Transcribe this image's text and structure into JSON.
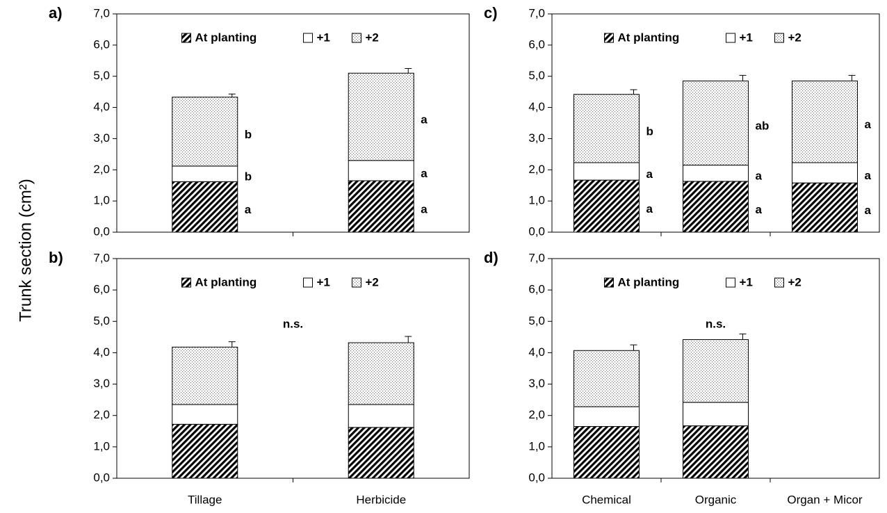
{
  "ylabel": "Trunk section (cm²)",
  "chart_data": [
    {
      "type": "stacked-bar",
      "title": "a)",
      "categories": [
        null,
        null
      ],
      "ylim": [
        0,
        7
      ],
      "yticks": [
        {
          "value": 0,
          "label": "0,0"
        },
        {
          "value": 1,
          "label": "1,0"
        },
        {
          "value": 2,
          "label": "2,0"
        },
        {
          "value": 3,
          "label": "3,0"
        },
        {
          "value": 4,
          "label": "4,0"
        },
        {
          "value": 5,
          "label": "5,0"
        },
        {
          "value": 6,
          "label": "6,0"
        },
        {
          "value": 7,
          "label": "7,0"
        }
      ],
      "series": [
        {
          "name": "At planting",
          "color": "#000000",
          "pattern": "hatch",
          "values": [
            1.62,
            1.65
          ],
          "errors": [
            0.04,
            0.04
          ],
          "letters": [
            "a",
            "a"
          ]
        },
        {
          "name": "+1",
          "color": "#ffffff",
          "pattern": "solid",
          "values": [
            0.5,
            0.65
          ],
          "errors": [
            0.07,
            0.07
          ],
          "letters": [
            "b",
            "a"
          ]
        },
        {
          "name": "+2",
          "color": "#a0a0a0",
          "pattern": "dots",
          "values": [
            2.21,
            2.8
          ],
          "errors": [
            0.1,
            0.15
          ],
          "letters": [
            "b",
            "a"
          ]
        }
      ]
    },
    {
      "type": "stacked-bar",
      "title": "b)",
      "categories": [
        "Tillage",
        "Herbicide"
      ],
      "annotation": "n.s.",
      "ylim": [
        0,
        7
      ],
      "yticks": [
        {
          "value": 0,
          "label": "0,0"
        },
        {
          "value": 1,
          "label": "1,0"
        },
        {
          "value": 2,
          "label": "2,0"
        },
        {
          "value": 3,
          "label": "3,0"
        },
        {
          "value": 4,
          "label": "4,0"
        },
        {
          "value": 5,
          "label": "5,0"
        },
        {
          "value": 6,
          "label": "6,0"
        },
        {
          "value": 7,
          "label": "7,0"
        }
      ],
      "series": [
        {
          "name": "At planting",
          "color": "#000000",
          "pattern": "hatch",
          "values": [
            1.72,
            1.62
          ],
          "errors": [
            0.07,
            0.07
          ]
        },
        {
          "name": "+1",
          "color": "#ffffff",
          "pattern": "solid",
          "values": [
            0.63,
            0.73
          ],
          "errors": [
            0.12,
            0.12
          ]
        },
        {
          "name": "+2",
          "color": "#a0a0a0",
          "pattern": "dots",
          "values": [
            1.83,
            1.97
          ],
          "errors": [
            0.17,
            0.2
          ]
        }
      ]
    },
    {
      "type": "stacked-bar",
      "title": "c)",
      "categories": [
        null,
        null,
        null
      ],
      "ylim": [
        0,
        7
      ],
      "yticks": [
        {
          "value": 0,
          "label": "0,0"
        },
        {
          "value": 1,
          "label": "1,0"
        },
        {
          "value": 2,
          "label": "2,0"
        },
        {
          "value": 3,
          "label": "3,0"
        },
        {
          "value": 4,
          "label": "4,0"
        },
        {
          "value": 5,
          "label": "5,0"
        },
        {
          "value": 6,
          "label": "6,0"
        },
        {
          "value": 7,
          "label": "7,0"
        }
      ],
      "series": [
        {
          "name": "At planting",
          "color": "#000000",
          "pattern": "hatch",
          "values": [
            1.67,
            1.63,
            1.58
          ],
          "errors": [
            0.07,
            0.04,
            0.04
          ],
          "letters": [
            "a",
            "a",
            "a"
          ]
        },
        {
          "name": "+1",
          "color": "#ffffff",
          "pattern": "solid",
          "values": [
            0.56,
            0.52,
            0.65
          ],
          "errors": [
            0.07,
            0.07,
            0.07
          ],
          "letters": [
            "a",
            "a",
            "a"
          ]
        },
        {
          "name": "+2",
          "color": "#a0a0a0",
          "pattern": "dots",
          "values": [
            2.19,
            2.7,
            2.62
          ],
          "errors": [
            0.15,
            0.18,
            0.18
          ],
          "letters": [
            "b",
            "ab",
            "a"
          ]
        }
      ]
    },
    {
      "type": "stacked-bar",
      "title": "d)",
      "categories": [
        "Chemical",
        "Organic",
        "Organ + Micor"
      ],
      "annotation": "n.s.",
      "ylim": [
        0,
        7
      ],
      "yticks": [
        {
          "value": 0,
          "label": "0,0"
        },
        {
          "value": 1,
          "label": "1,0"
        },
        {
          "value": 2,
          "label": "2,0"
        },
        {
          "value": 3,
          "label": "3,0"
        },
        {
          "value": 4,
          "label": "4,0"
        },
        {
          "value": 5,
          "label": "5,0"
        },
        {
          "value": 6,
          "label": "6,0"
        },
        {
          "value": 7,
          "label": "7,0"
        }
      ],
      "series": [
        {
          "name": "At planting",
          "color": "#000000",
          "pattern": "hatch",
          "values": [
            1.65,
            1.67,
            null
          ],
          "errors": [
            0.07,
            0.07,
            null
          ]
        },
        {
          "name": "+1",
          "color": "#ffffff",
          "pattern": "solid",
          "values": [
            0.63,
            0.75,
            null
          ],
          "errors": [
            0.12,
            0.12,
            null
          ]
        },
        {
          "name": "+2",
          "color": "#a0a0a0",
          "pattern": "dots",
          "values": [
            1.79,
            2.0,
            null
          ],
          "errors": [
            0.18,
            0.18,
            null
          ]
        }
      ]
    }
  ]
}
